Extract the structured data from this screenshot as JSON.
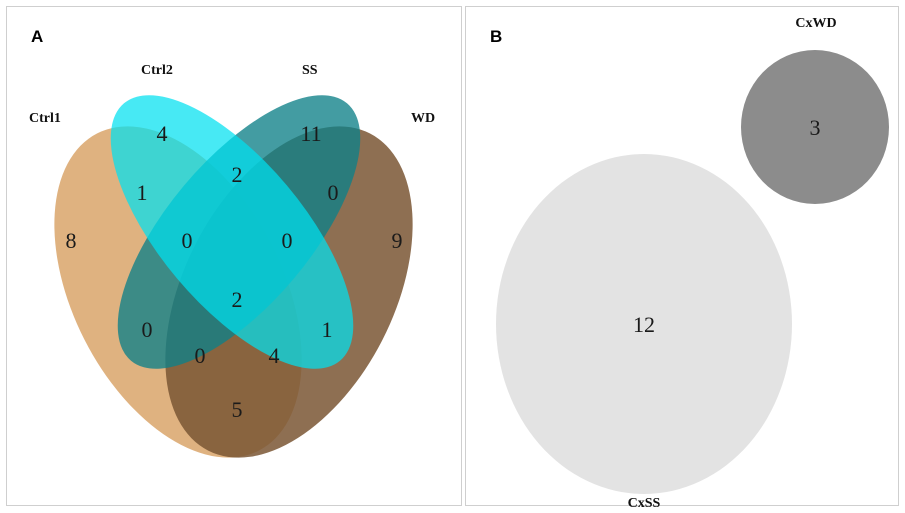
{
  "panel_a": {
    "letter": "A",
    "sets": [
      {
        "name": "Ctrl1",
        "color": "#d9a46a"
      },
      {
        "name": "Ctrl2",
        "color": "#00e1f0"
      },
      {
        "name": "SS",
        "color": "#0e8088"
      },
      {
        "name": "WD",
        "color": "#7a5634"
      }
    ],
    "counts": {
      "ctrl1_only": "8",
      "ctrl2_only": "4",
      "ss_only": "11",
      "wd_only": "9",
      "ctrl1_ctrl2": "1",
      "ctrl2_ss": "2",
      "ss_wd": "0",
      "ctrl1_ctrl2_ss": "0",
      "ctrl2_ss_wd": "0",
      "all_four": "2",
      "ctrl1_ss": "0",
      "ctrl1_ss_wd": "0",
      "ctrl1_ctrl2_wd": "4",
      "ctrl2_wd": "1",
      "ctrl1_wd": "5"
    }
  },
  "panel_b": {
    "letter": "B",
    "circles": [
      {
        "name": "CxWD",
        "count": "3",
        "color": "#8c8c8c"
      },
      {
        "name": "CxSS",
        "count": "12",
        "color": "#e3e3e3"
      }
    ]
  }
}
